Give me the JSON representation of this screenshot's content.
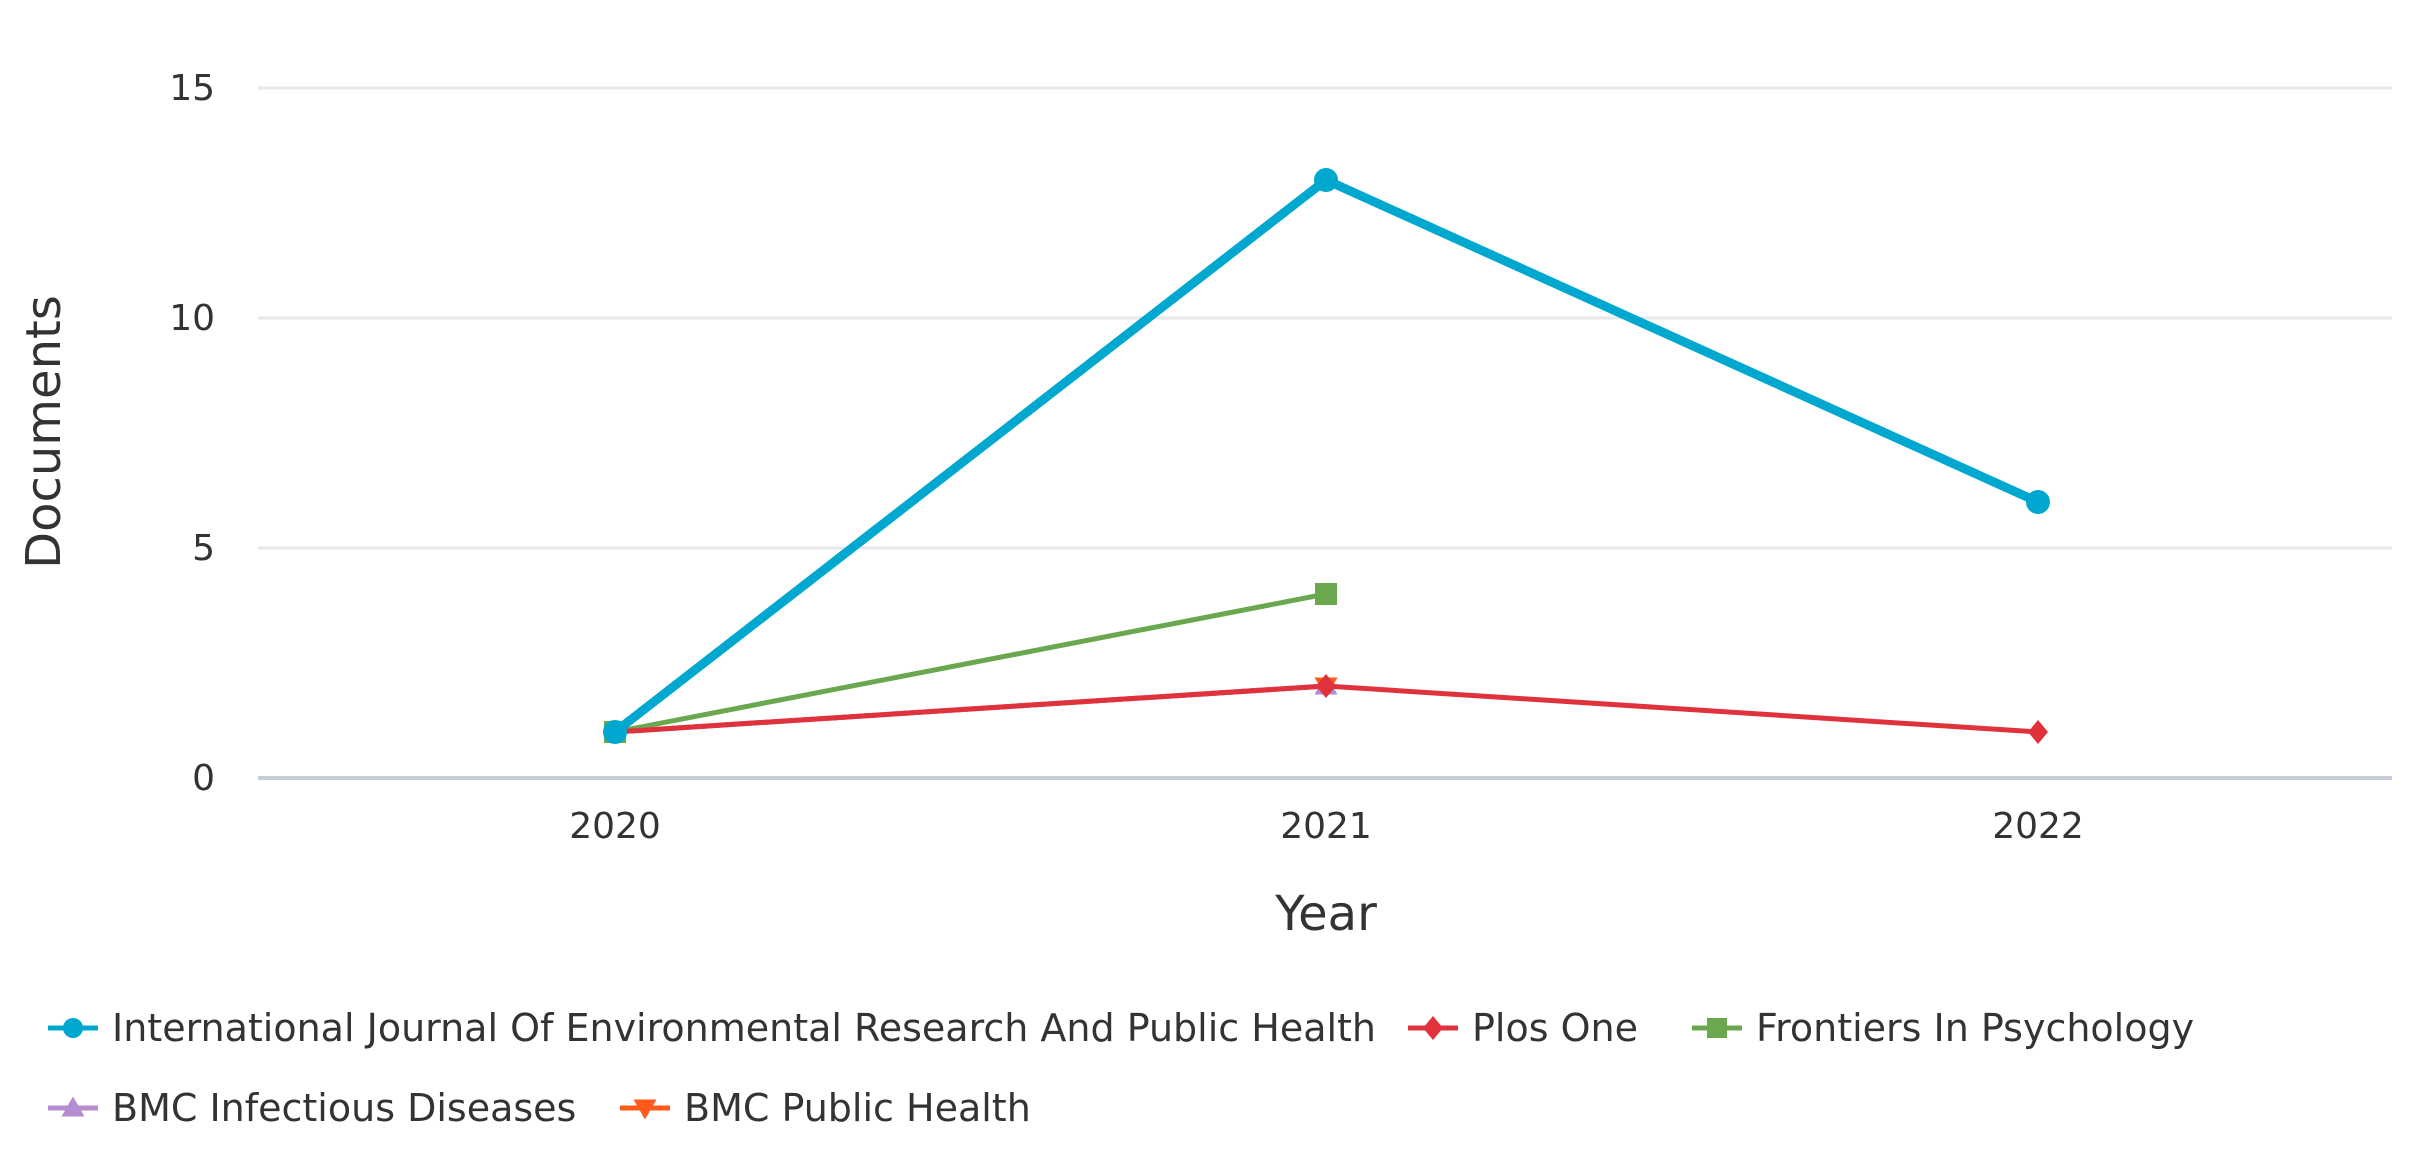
{
  "chart_data": {
    "type": "line",
    "title": "",
    "xlabel": "Year",
    "ylabel": "Documents",
    "categories": [
      "2020",
      "2021",
      "2022"
    ],
    "ylim": [
      0,
      15
    ],
    "yticks": [
      0,
      5,
      10,
      15
    ],
    "grid": true,
    "legend_position": "bottom",
    "series": [
      {
        "name": "International Journal Of Environmental Research And Public Health",
        "color": "#00a8d0",
        "marker": "circle",
        "values": [
          1,
          13,
          6
        ]
      },
      {
        "name": "Plos One",
        "color": "#e0323c",
        "marker": "diamond",
        "values": [
          1,
          2,
          1
        ]
      },
      {
        "name": "Frontiers In Psychology",
        "color": "#6aa84f",
        "marker": "square",
        "values": [
          1,
          4,
          null
        ]
      },
      {
        "name": "BMC Infectious Diseases",
        "color": "#b48ccf",
        "marker": "triangle-up",
        "values": [
          1,
          2,
          null
        ]
      },
      {
        "name": "BMC Public Health",
        "color": "#ff5a1a",
        "marker": "triangle-down",
        "values": [
          1,
          2,
          null
        ]
      }
    ]
  }
}
